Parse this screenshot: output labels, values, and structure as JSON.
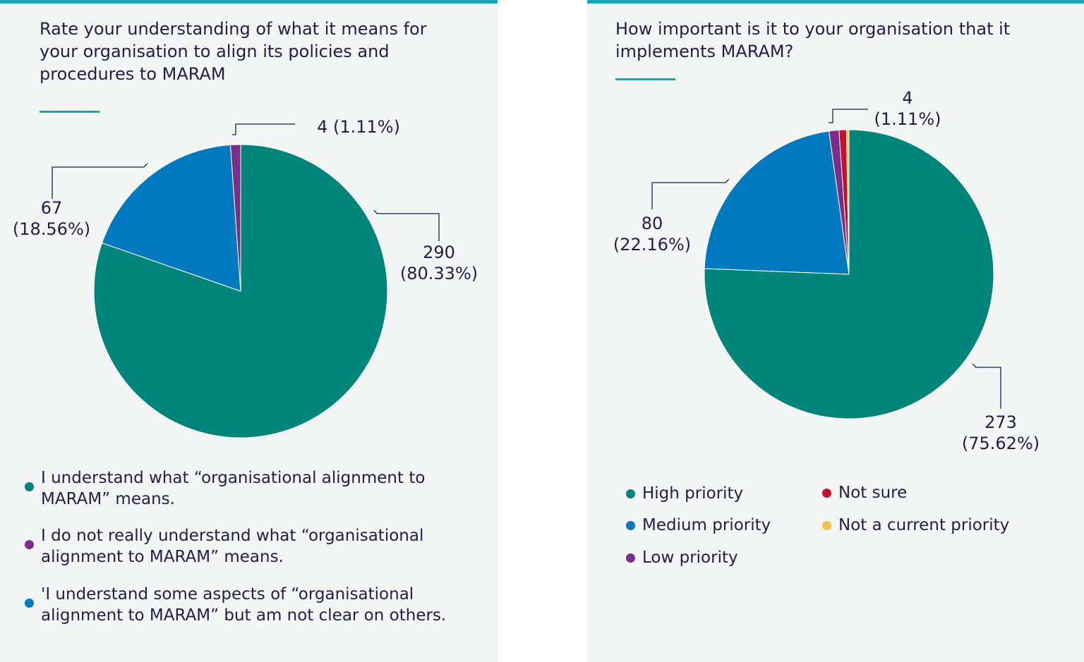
{
  "chart_data": [
    {
      "type": "pie",
      "title": "Rate your understanding of what it means for your organisation to align its policies and procedures to MARAM",
      "categories": [
        "I understand what “organisational alignment to MARAM” means.",
        "'I understand some aspects of “organisational alignment to MARAM” but am not clear on others.",
        "I do not really understand what “organisational alignment to MARAM” means."
      ],
      "values": [
        290,
        67,
        4
      ],
      "value_labels": [
        "290 (80.33%)",
        "67 (18.56%)",
        "4 (1.11%)"
      ],
      "colors": [
        "#00857a",
        "#0079c1",
        "#7b2d8e"
      ]
    },
    {
      "type": "pie",
      "title": "How important is it to your organisation that it implements MARAM?",
      "categories": [
        "High priority",
        "Medium priority",
        "Low priority",
        "Not sure",
        "Not a current priority"
      ],
      "values": [
        273,
        80,
        4,
        3,
        1
      ],
      "value_labels": [
        "273 (75.62%)",
        "80 (22.16%)",
        "4 (1.11%)",
        null,
        null
      ],
      "colors": [
        "#00857a",
        "#0079c1",
        "#7b2d8e",
        "#c8102e",
        "#f5c342"
      ]
    }
  ]
}
